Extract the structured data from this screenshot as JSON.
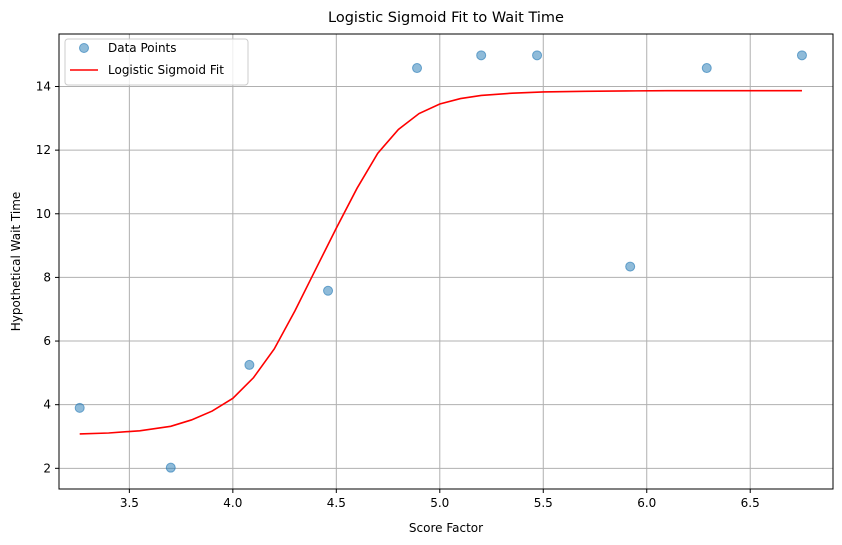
{
  "chart_data": {
    "type": "scatter",
    "title": "Logistic Sigmoid Fit to Wait Time",
    "xlabel": "Score Factor",
    "ylabel": "Hypothetical Wait Time",
    "xlim": [
      3.16,
      6.9
    ],
    "ylim": [
      1.35,
      15.65
    ],
    "xticks": [
      3.5,
      4.0,
      4.5,
      5.0,
      5.5,
      6.0,
      6.5
    ],
    "xtick_labels": [
      "3.5",
      "4.0",
      "4.5",
      "5.0",
      "5.5",
      "6.0",
      "6.5"
    ],
    "yticks": [
      2,
      4,
      6,
      8,
      10,
      12,
      14
    ],
    "ytick_labels": [
      "2",
      "4",
      "6",
      "8",
      "10",
      "12",
      "14"
    ],
    "grid": true,
    "legend_position": "top-left",
    "series": [
      {
        "name": "Data Points",
        "kind": "scatter",
        "color": "#1f77b4",
        "x": [
          3.26,
          3.7,
          4.08,
          4.46,
          4.89,
          5.2,
          5.47,
          5.92,
          6.29,
          6.75
        ],
        "y": [
          3.9,
          2.02,
          5.25,
          7.58,
          14.58,
          14.98,
          14.98,
          8.34,
          14.58,
          14.98
        ]
      },
      {
        "name": "Logistic Sigmoid Fit",
        "kind": "line",
        "color": "#ff0000",
        "x": [
          3.26,
          3.4,
          3.55,
          3.7,
          3.8,
          3.9,
          4.0,
          4.1,
          4.2,
          4.3,
          4.4,
          4.5,
          4.6,
          4.7,
          4.8,
          4.9,
          5.0,
          5.1,
          5.2,
          5.35,
          5.5,
          5.7,
          5.9,
          6.1,
          6.3,
          6.5,
          6.75
        ],
        "y": [
          3.08,
          3.11,
          3.18,
          3.32,
          3.52,
          3.8,
          4.2,
          4.85,
          5.75,
          6.95,
          8.25,
          9.55,
          10.8,
          11.9,
          12.65,
          13.15,
          13.45,
          13.62,
          13.72,
          13.79,
          13.83,
          13.85,
          13.86,
          13.87,
          13.87,
          13.87,
          13.87
        ]
      }
    ]
  }
}
